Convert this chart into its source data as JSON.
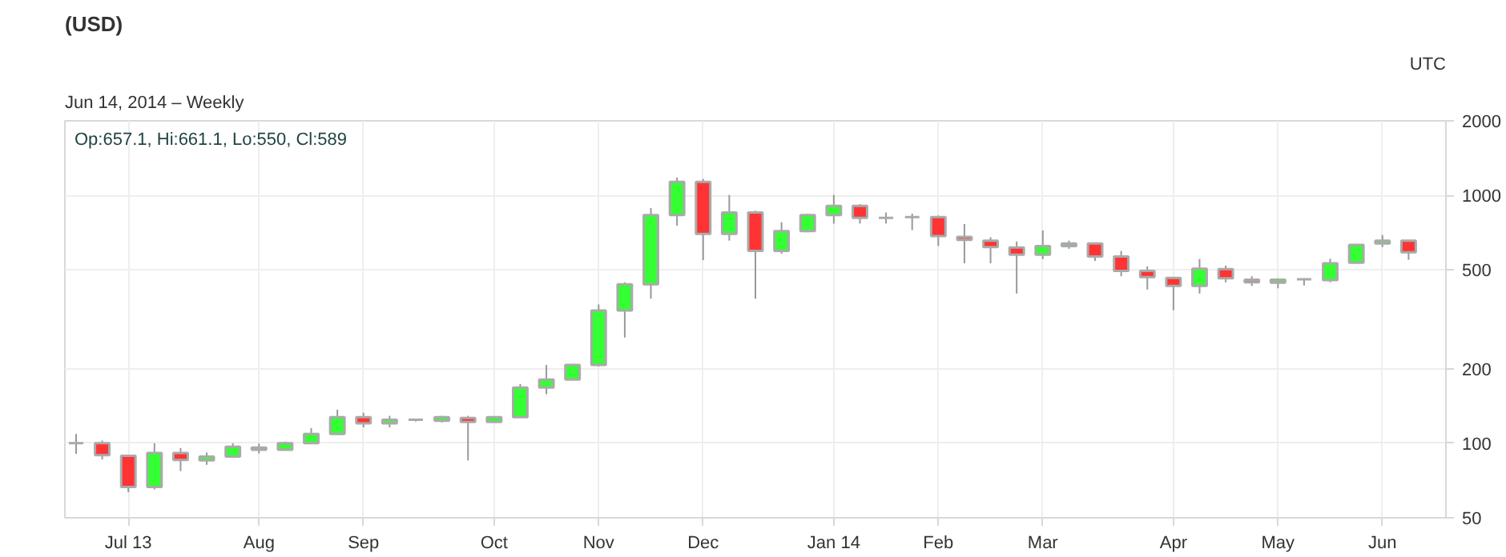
{
  "chart_data": {
    "type": "candlestick",
    "title": "(USD)",
    "subtitle": "Jun 14, 2014 – Weekly",
    "annotations": [
      "UTC",
      "Op:657.1, Hi:661.1, Lo:550, Cl:589"
    ],
    "x": [
      "2013-06-17",
      "2013-06-24",
      "2013-07-01",
      "2013-07-08",
      "2013-07-15",
      "2013-07-22",
      "2013-07-29",
      "2013-08-05",
      "2013-08-12",
      "2013-08-19",
      "2013-08-26",
      "2013-09-02",
      "2013-09-09",
      "2013-09-16",
      "2013-09-23",
      "2013-09-30",
      "2013-10-07",
      "2013-10-14",
      "2013-10-21",
      "2013-10-28",
      "2013-11-04",
      "2013-11-11",
      "2013-11-18",
      "2013-11-25",
      "2013-12-02",
      "2013-12-09",
      "2013-12-16",
      "2013-12-23",
      "2013-12-30",
      "2014-01-06",
      "2014-01-13",
      "2014-01-20",
      "2014-01-27",
      "2014-02-03",
      "2014-02-10",
      "2014-02-17",
      "2014-02-24",
      "2014-03-03",
      "2014-03-10",
      "2014-03-17",
      "2014-03-24",
      "2014-03-31",
      "2014-04-07",
      "2014-04-14",
      "2014-04-21",
      "2014-04-28",
      "2014-05-05",
      "2014-05-12",
      "2014-05-19",
      "2014-05-26",
      "2014-06-02",
      "2014-06-09"
    ],
    "ohlc": [
      [
        100,
        109,
        90.6,
        100
      ],
      [
        100,
        102.5,
        86,
        89.5
      ],
      [
        89,
        89.5,
        63.4,
        66.6
      ],
      [
        66.6,
        100,
        65.1,
        91.4
      ],
      [
        91.4,
        95.6,
        77.2,
        85.6
      ],
      [
        85.2,
        91.7,
        81.8,
        88.4
      ],
      [
        88.4,
        100,
        88,
        96.8
      ],
      [
        96,
        99.6,
        91,
        94
      ],
      [
        94,
        101.6,
        93.6,
        100
      ],
      [
        100,
        115,
        99.2,
        109
      ],
      [
        109,
        136.6,
        108,
        127.4
      ],
      [
        127.4,
        132.7,
        115.9,
        120.3
      ],
      [
        120.3,
        129,
        115.9,
        124.3
      ],
      [
        124.3,
        125.8,
        122.3,
        124.3
      ],
      [
        123.3,
        129,
        121.3,
        127.4
      ],
      [
        126.4,
        129,
        85.2,
        121.8
      ],
      [
        121.8,
        128.4,
        121,
        127.4
      ],
      [
        127.4,
        173.4,
        127.4,
        167.7
      ],
      [
        167.7,
        206.9,
        157.7,
        180.6
      ],
      [
        180.6,
        208,
        180.6,
        206.9
      ],
      [
        206.9,
        363,
        204,
        343
      ],
      [
        343,
        446,
        267,
        438
      ],
      [
        438,
        889,
        383,
        833
      ],
      [
        833,
        1182,
        755,
        1135
      ],
      [
        1135,
        1165,
        548,
        700
      ],
      [
        700,
        1005,
        657,
        854
      ],
      [
        854,
        868,
        383,
        597
      ],
      [
        597,
        780,
        582,
        718
      ],
      [
        718,
        844,
        710,
        833
      ],
      [
        833,
        1005,
        770,
        907
      ],
      [
        907,
        922,
        770,
        812
      ],
      [
        812,
        854,
        770,
        812
      ],
      [
        818,
        844,
        725,
        818
      ],
      [
        818,
        830,
        625,
        685
      ],
      [
        680,
        767,
        532,
        662
      ],
      [
        657,
        678,
        532,
        619
      ],
      [
        616,
        652,
        402,
        576
      ],
      [
        576,
        722,
        554,
        625
      ],
      [
        625,
        657,
        609,
        640
      ],
      [
        640,
        646,
        544,
        567
      ],
      [
        567,
        597,
        472,
        496
      ],
      [
        496,
        517,
        417,
        468
      ],
      [
        465,
        469,
        344,
        431
      ],
      [
        431,
        554,
        402,
        506
      ],
      [
        504,
        521,
        446,
        463
      ],
      [
        457,
        472,
        431,
        446
      ],
      [
        444,
        463,
        422,
        457
      ],
      [
        459,
        463,
        433,
        459
      ],
      [
        455,
        555,
        446,
        532
      ],
      [
        535,
        637,
        532,
        632
      ],
      [
        640,
        692,
        619,
        657
      ],
      [
        657.1,
        661.1,
        550,
        589
      ]
    ],
    "log": true,
    "ylim": [
      50,
      2000
    ],
    "yticks": [
      50,
      100,
      200,
      500,
      1000,
      2000
    ],
    "xlim": [
      "2013-06-14",
      "2014-06-19"
    ],
    "xticks": [
      {
        "value": "2013-07-01",
        "label": "Jul 13"
      },
      {
        "value": "2013-08-05",
        "label": "Aug"
      },
      {
        "value": "2013-09-02",
        "label": "Sep"
      },
      {
        "value": "2013-10-07",
        "label": "Oct"
      },
      {
        "value": "2013-11-04",
        "label": "Nov"
      },
      {
        "value": "2013-12-02",
        "label": "Dec"
      },
      {
        "value": "2014-01-06",
        "label": "Jan 14"
      },
      {
        "value": "2014-02-03",
        "label": "Feb"
      },
      {
        "value": "2014-03-03",
        "label": "Mar"
      },
      {
        "value": "2014-04-07",
        "label": "Apr"
      },
      {
        "value": "2014-05-05",
        "label": "May"
      },
      {
        "value": "2014-06-02",
        "label": "Jun"
      }
    ],
    "grid": true
  }
}
